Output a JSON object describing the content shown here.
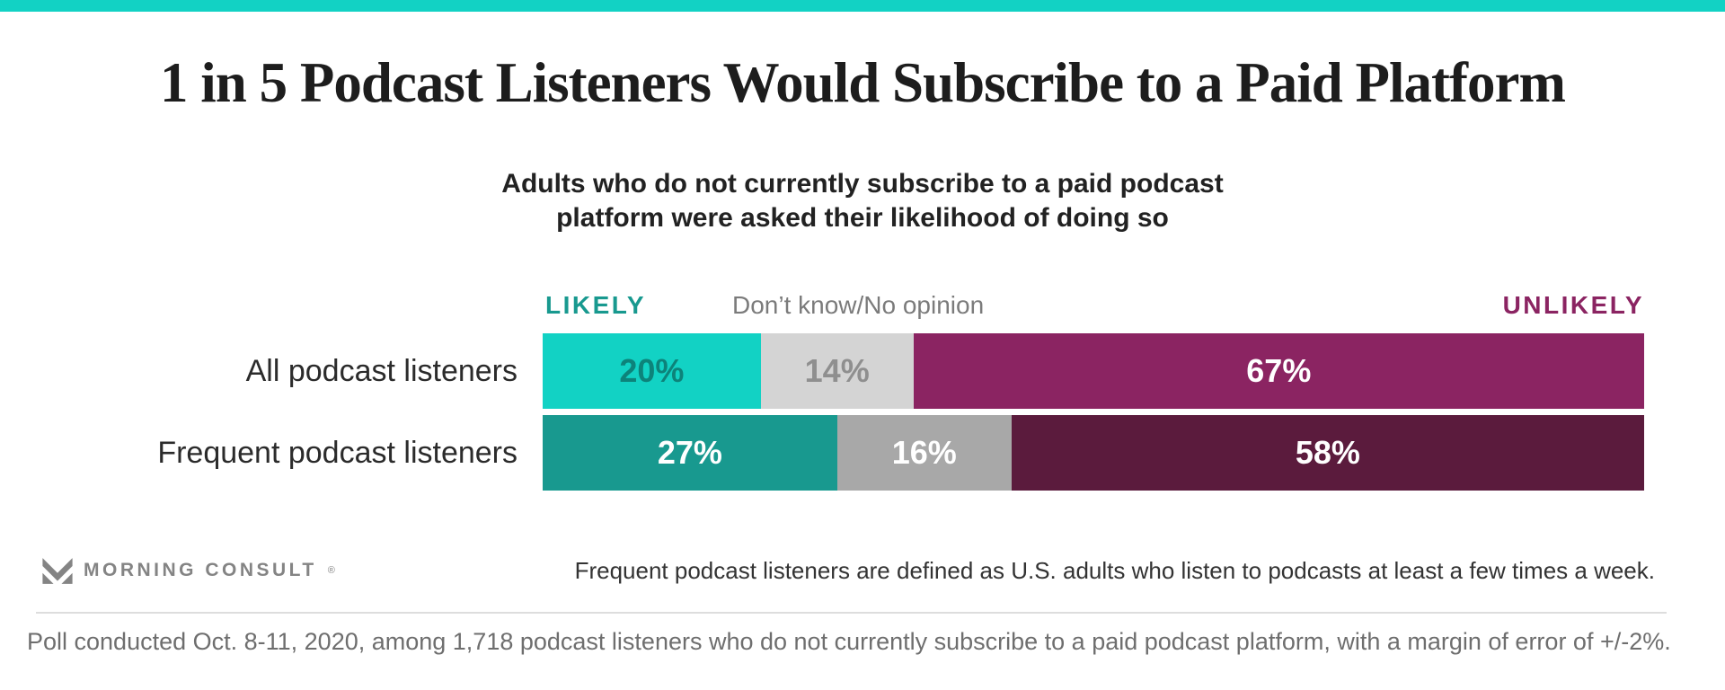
{
  "title": "1 in 5 Podcast Listeners Would Subscribe to a Paid Platform",
  "subtitle": {
    "line1": "Adults who do not currently subscribe to a paid podcast",
    "line2": "platform were asked their likelihood of doing so"
  },
  "legend": {
    "likely": "LIKELY",
    "dont_know": "Don’t know/No opinion",
    "unlikely": "UNLIKELY"
  },
  "colors": {
    "accent": "#12d2c4",
    "likely_label": "#18998f",
    "unlikely_label": "#8b2462",
    "dont_know_label": "#7b7b7b"
  },
  "chart_data": {
    "type": "bar",
    "stacked": true,
    "orientation": "horizontal",
    "categories": [
      "All podcast listeners",
      "Frequent podcast listeners"
    ],
    "series": [
      {
        "name": "Likely",
        "values": [
          20,
          27
        ]
      },
      {
        "name": "Don’t know/No opinion",
        "values": [
          14,
          16
        ]
      },
      {
        "name": "Unlikely",
        "values": [
          67,
          58
        ]
      }
    ],
    "value_suffix": "%",
    "xlim": [
      0,
      101
    ],
    "legend_position": "top",
    "grid": false
  },
  "rows": [
    {
      "label": "All podcast listeners",
      "segments": [
        {
          "value": "20%",
          "pct": 19.8,
          "bg": "#12d2c4",
          "fg": "#0d837a"
        },
        {
          "value": "14%",
          "pct": 13.86,
          "bg": "#d4d4d4",
          "fg": "#8f8f8f"
        },
        {
          "value": "67%",
          "pct": 66.34,
          "bg": "#8b2462",
          "fg": "#ffffff"
        }
      ]
    },
    {
      "label": "Frequent podcast listeners",
      "segments": [
        {
          "value": "27%",
          "pct": 26.73,
          "bg": "#18998f",
          "fg": "#ffffff"
        },
        {
          "value": "16%",
          "pct": 15.84,
          "bg": "#a8a8a8",
          "fg": "#ffffff"
        },
        {
          "value": "58%",
          "pct": 57.43,
          "bg": "#5b1b3d",
          "fg": "#ffffff"
        }
      ]
    }
  ],
  "footer": {
    "logo_text": "MORNING CONSULT",
    "logo_reg": "®",
    "note": "Frequent podcast listeners are defined as U.S. adults who listen to podcasts at least a few times a week."
  },
  "poll_note": "Poll conducted Oct. 8-11, 2020, among 1,718 podcast listeners who do not currently subscribe to a paid podcast platform, with a margin of error of +/-2%."
}
